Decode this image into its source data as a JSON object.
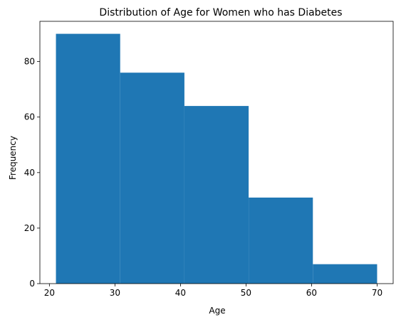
{
  "chart_data": {
    "type": "bar",
    "title": "Distribution of Age for Women who has Diabetes",
    "xlabel": "Age",
    "ylabel": "Frequency",
    "bin_edges": [
      21,
      30.8,
      40.6,
      50.4,
      60.2,
      70
    ],
    "values": [
      90,
      76,
      64,
      31,
      7
    ],
    "xlim": [
      18.55,
      72.45
    ],
    "ylim": [
      0,
      94.5
    ],
    "x_ticks": [
      20,
      30,
      40,
      50,
      60,
      70
    ],
    "y_ticks": [
      0,
      20,
      40,
      60,
      80
    ],
    "bar_color": "#1f77b4",
    "grid": false
  }
}
